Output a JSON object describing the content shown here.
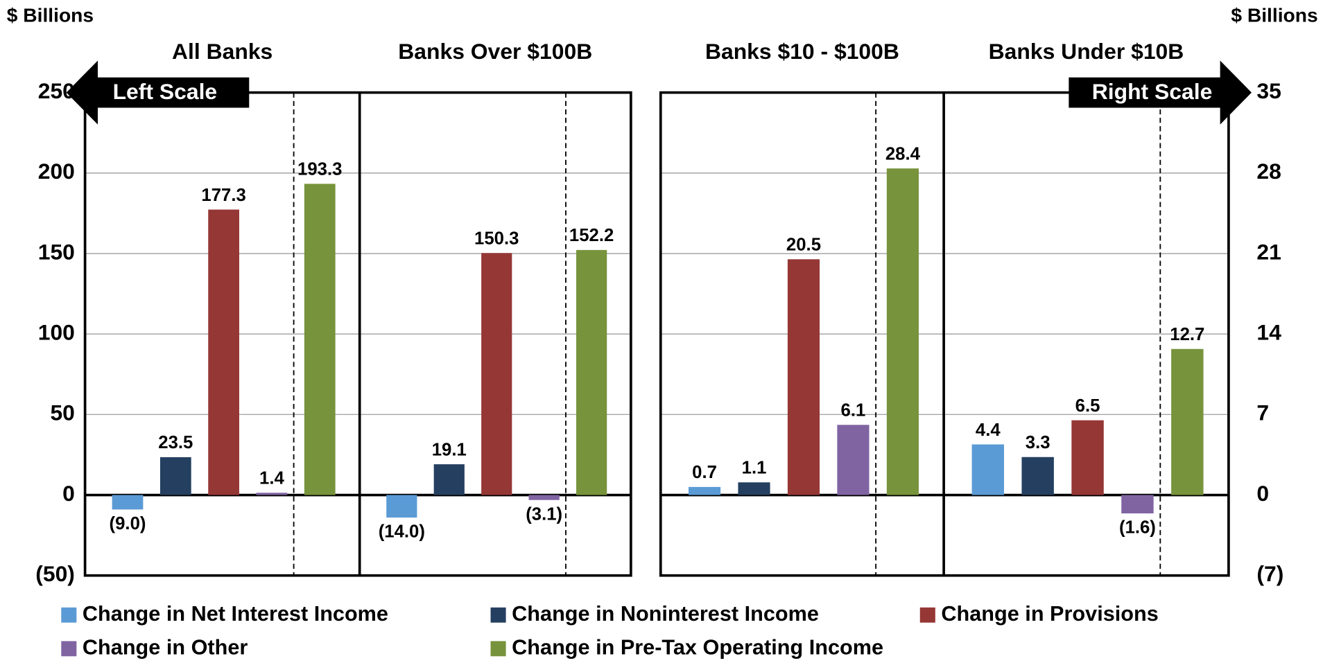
{
  "chart_data": {
    "type": "bar",
    "y_label": "$ Billions",
    "y2_label": "$ Billions",
    "left_scale_label": "Left Scale",
    "right_scale_label": "Right Scale",
    "categories": [
      "All Banks",
      "Banks Over $100B",
      "Banks $10 - $100B",
      "Banks Under $10B"
    ],
    "category_axes": [
      "y",
      "y",
      "y2",
      "y2"
    ],
    "ylim": [
      -50,
      250
    ],
    "yticks": [
      {
        "value": -50,
        "label": "(50)"
      },
      0,
      50,
      100,
      150,
      200,
      250
    ],
    "y2lim": [
      -7,
      35
    ],
    "y2ticks": [
      {
        "value": -7,
        "label": "(7)"
      },
      0,
      7,
      14,
      21,
      28,
      35
    ],
    "grid": true,
    "series": [
      {
        "name": "Change in Net Interest Income",
        "color": "#5b9bd5",
        "values": [
          -9.0,
          -14.0,
          0.7,
          4.4
        ],
        "value_labels": [
          "(9.0)",
          "(14.0)",
          "0.7",
          "4.4"
        ]
      },
      {
        "name": "Change in Noninterest Income",
        "color": "#243f60",
        "values": [
          23.5,
          19.1,
          1.1,
          3.3
        ],
        "value_labels": [
          "23.5",
          "19.1",
          "1.1",
          "3.3"
        ]
      },
      {
        "name": "Change in Provisions",
        "color": "#953735",
        "values": [
          177.3,
          150.3,
          20.5,
          6.5
        ],
        "value_labels": [
          "177.3",
          "150.3",
          "20.5",
          "6.5"
        ]
      },
      {
        "name": "Change in Other",
        "color": "#8064a2",
        "values": [
          1.4,
          -3.1,
          6.1,
          -1.6
        ],
        "value_labels": [
          "1.4",
          "(3.1)",
          "6.1",
          "(1.6)"
        ]
      },
      {
        "name": "Change in Pre-Tax Operating Income",
        "color": "#77933c",
        "values": [
          193.3,
          152.2,
          28.4,
          12.7
        ],
        "value_labels": [
          "193.3",
          "152.2",
          "28.4",
          "12.7"
        ]
      }
    ]
  }
}
